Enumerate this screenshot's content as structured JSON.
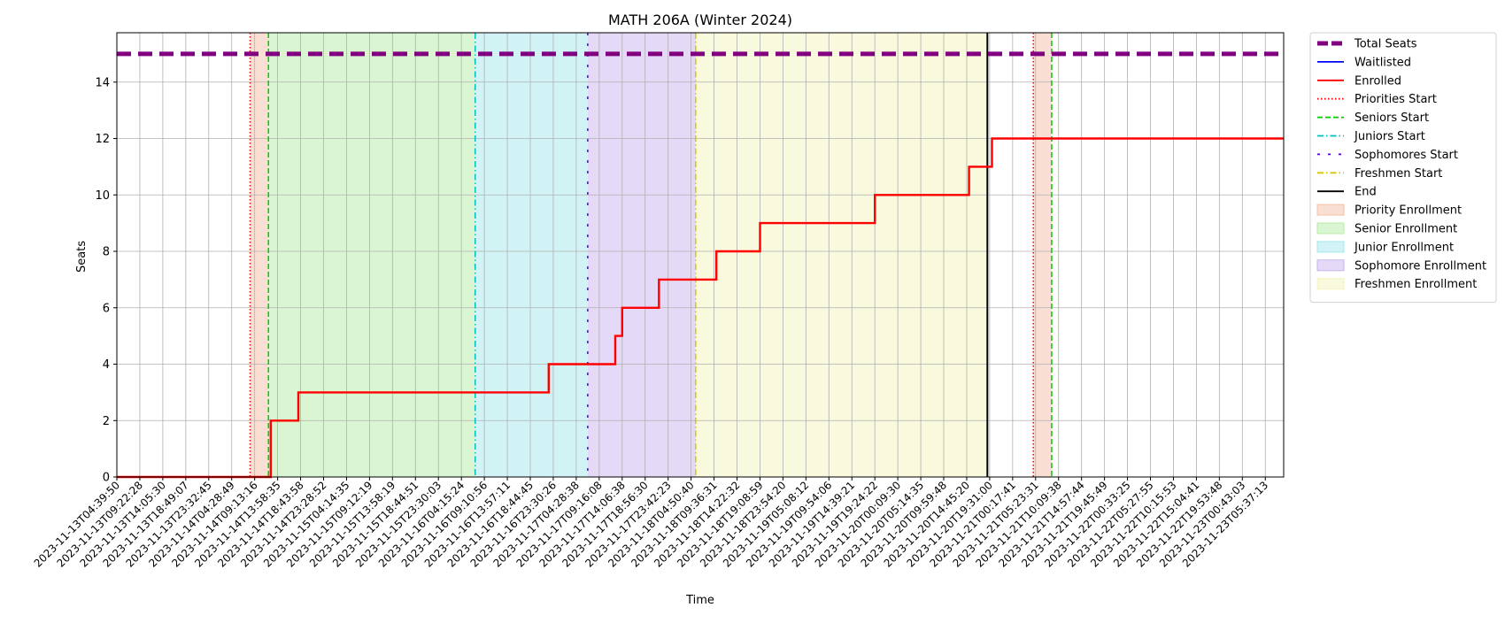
{
  "chart_data": {
    "type": "line",
    "title": "MATH 206A (Winter 2024)",
    "xlabel": "Time",
    "ylabel": "Seats",
    "ylim": [
      0,
      15.75
    ],
    "y_ticks": [
      0,
      2,
      4,
      6,
      8,
      10,
      12,
      14
    ],
    "grid": true,
    "legend_placement": "outside-right",
    "x_tick_labels": [
      "2023-11-13T04:39:50",
      "2023-11-13T09:22:28",
      "2023-11-13T14:05:30",
      "2023-11-13T18:49:07",
      "2023-11-13T23:32:45",
      "2023-11-14T04:28:49",
      "2023-11-14T09:13:16",
      "2023-11-14T13:58:35",
      "2023-11-14T18:43:58",
      "2023-11-14T23:28:52",
      "2023-11-15T04:14:35",
      "2023-11-15T09:12:19",
      "2023-11-15T13:58:19",
      "2023-11-15T18:44:51",
      "2023-11-15T23:30:03",
      "2023-11-16T04:15:24",
      "2023-11-16T09:10:56",
      "2023-11-16T13:57:11",
      "2023-11-16T18:44:45",
      "2023-11-16T23:30:26",
      "2023-11-17T04:28:38",
      "2023-11-17T09:16:08",
      "2023-11-17T14:06:38",
      "2023-11-17T18:56:30",
      "2023-11-17T23:42:23",
      "2023-11-18T04:50:40",
      "2023-11-18T09:36:31",
      "2023-11-18T14:22:32",
      "2023-11-18T19:08:59",
      "2023-11-18T23:54:20",
      "2023-11-19T05:08:12",
      "2023-11-19T09:54:06",
      "2023-11-19T14:39:21",
      "2023-11-19T19:24:22",
      "2023-11-20T00:09:30",
      "2023-11-20T05:14:35",
      "2023-11-20T09:59:48",
      "2023-11-20T14:45:20",
      "2023-11-20T19:31:00",
      "2023-11-21T00:17:41",
      "2023-11-21T05:23:31",
      "2023-11-21T10:09:38",
      "2023-11-21T14:57:44",
      "2023-11-21T19:45:49",
      "2023-11-22T00:33:25",
      "2023-11-22T05:27:55",
      "2023-11-22T10:15:53",
      "2023-11-22T15:04:41",
      "2023-11-22T19:53:48",
      "2023-11-23T00:43:03",
      "2023-11-23T05:37:13"
    ],
    "x_range_index": [
      0,
      50.8
    ],
    "series": [
      {
        "name": "Total Seats",
        "color": "#800080",
        "style": "dashed-thick",
        "points": [
          [
            0,
            15
          ],
          [
            50.8,
            15
          ]
        ]
      },
      {
        "name": "Waitlisted",
        "color": "#0000ff",
        "style": "solid",
        "points": []
      },
      {
        "name": "Enrolled",
        "color": "#ff0000",
        "style": "solid",
        "points": [
          [
            0,
            0
          ],
          [
            6.7,
            0
          ],
          [
            6.7,
            2
          ],
          [
            7.9,
            2
          ],
          [
            7.9,
            3
          ],
          [
            18.8,
            3
          ],
          [
            18.8,
            4
          ],
          [
            21.7,
            4
          ],
          [
            21.7,
            5
          ],
          [
            22.0,
            5
          ],
          [
            22.0,
            6
          ],
          [
            23.6,
            6
          ],
          [
            23.6,
            7
          ],
          [
            26.1,
            7
          ],
          [
            26.1,
            8
          ],
          [
            28.0,
            8
          ],
          [
            28.0,
            9
          ],
          [
            33.0,
            9
          ],
          [
            33.0,
            10
          ],
          [
            37.1,
            10
          ],
          [
            37.1,
            11
          ],
          [
            38.1,
            11
          ],
          [
            38.1,
            12
          ],
          [
            50.8,
            12
          ]
        ]
      }
    ],
    "events": [
      {
        "name": "Priorities Start",
        "x": 5.8,
        "color": "#ff0000",
        "style": "dotted"
      },
      {
        "name": "Seniors Start",
        "x": 6.6,
        "color": "#00cc00",
        "style": "dashed"
      },
      {
        "name": "Juniors Start",
        "x": 15.6,
        "color": "#00bfbf",
        "style": "dashdot"
      },
      {
        "name": "Sophomores Start",
        "x": 20.5,
        "color": "#5500cc",
        "style": "loosedash"
      },
      {
        "name": "Freshmen Start",
        "x": 25.2,
        "color": "#d4c800",
        "style": "dashdot"
      },
      {
        "name": "End",
        "x": 37.9,
        "color": "#000000",
        "style": "solid"
      },
      {
        "name": "Priorities Start",
        "x": 39.9,
        "color": "#ff0000",
        "style": "dotted",
        "hide_legend": true
      },
      {
        "name": "Seniors Start",
        "x": 40.7,
        "color": "#00cc00",
        "style": "dashed",
        "hide_legend": true
      }
    ],
    "periods": [
      {
        "name": "Priority Enrollment",
        "from": 5.8,
        "to": 6.6,
        "color": "#f4c0a8"
      },
      {
        "name": "Senior Enrollment",
        "from": 6.6,
        "to": 15.6,
        "color": "#b6eca6"
      },
      {
        "name": "Junior Enrollment",
        "from": 15.6,
        "to": 20.5,
        "color": "#a6e8ec"
      },
      {
        "name": "Sophomore Enrollment",
        "from": 20.5,
        "to": 25.2,
        "color": "#c9b3ee"
      },
      {
        "name": "Freshmen Enrollment",
        "from": 25.2,
        "to": 37.9,
        "color": "#f4f4bc"
      },
      {
        "name": "Priority Enrollment",
        "from": 39.9,
        "to": 40.7,
        "color": "#f4c0a8",
        "hide_legend": true
      }
    ],
    "legend": [
      "Total Seats",
      "Waitlisted",
      "Enrolled",
      "Priorities Start",
      "Seniors Start",
      "Juniors Start",
      "Sophomores Start",
      "Freshmen Start",
      "End",
      "Priority Enrollment",
      "Senior Enrollment",
      "Junior Enrollment",
      "Sophomore Enrollment",
      "Freshmen Enrollment"
    ]
  }
}
